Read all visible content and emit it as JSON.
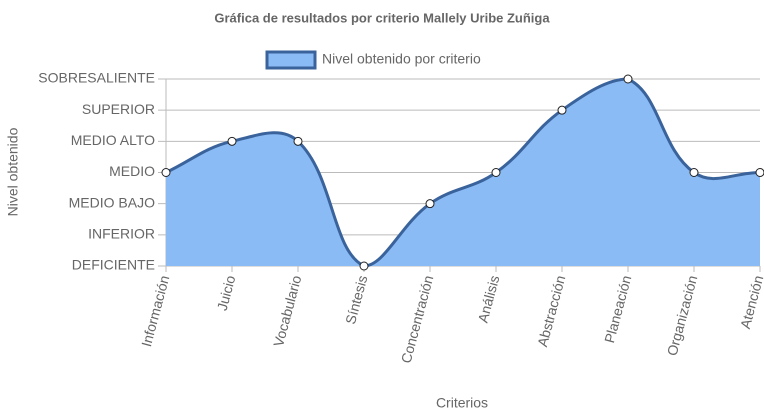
{
  "chart_data": {
    "type": "line",
    "title": "Gráfica de resultados por criterio Mallely Uribe Zuñiga",
    "x_label": "Criterios",
    "y_label": "Nivel obtenido",
    "categories": [
      "Información",
      "Juicio",
      "Vocabulario",
      "Síntesis",
      "Concentración",
      "Análisis",
      "Abstracción",
      "Planeación",
      "Organización",
      "Atención"
    ],
    "series": [
      {
        "name": "Nivel obtenido por criterio",
        "color": "#3a639c",
        "fill_color": "#8bbbf5",
        "values": [
          3,
          4,
          4,
          0,
          2,
          3,
          5,
          6,
          3,
          3
        ]
      }
    ],
    "ylim": [
      0,
      6
    ],
    "yticks": [
      {
        "value": 0,
        "label": "DEFICIENTE"
      },
      {
        "value": 1,
        "label": "INFERIOR"
      },
      {
        "value": 2,
        "label": "MEDIO BAJO"
      },
      {
        "value": 3,
        "label": "MEDIO"
      },
      {
        "value": 4,
        "label": "MEDIO ALTO"
      },
      {
        "value": 5,
        "label": "SUPERIOR"
      },
      {
        "value": 6,
        "label": "SOBRESALIENTE"
      }
    ],
    "grid": true,
    "fill": true,
    "legend": "top"
  }
}
